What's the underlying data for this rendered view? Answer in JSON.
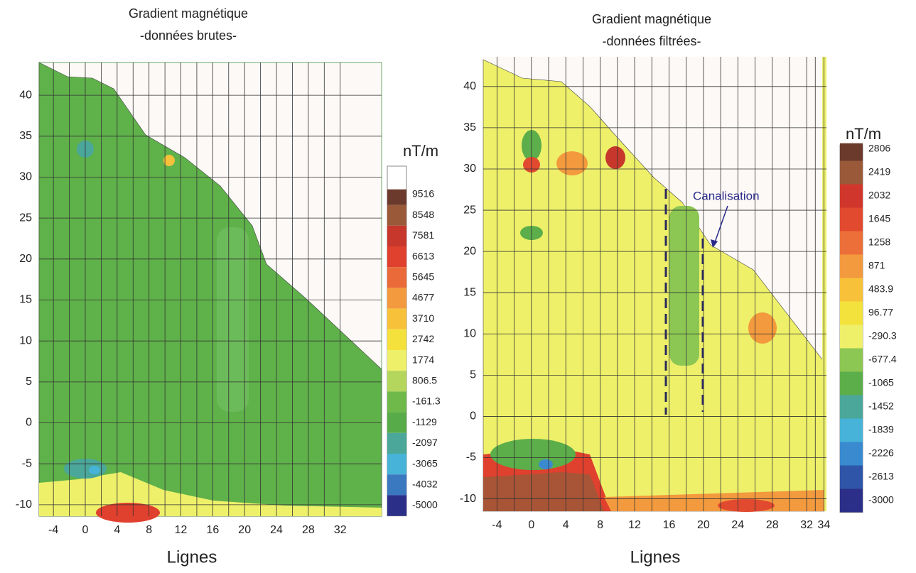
{
  "panels": [
    {
      "title": [
        "Gradient magnétique",
        "-données brutes-"
      ],
      "xlabel": "Lignes",
      "xlim": [
        -5.8,
        37.2
      ],
      "ylim": [
        -11.4,
        44
      ],
      "xticks": [
        -4,
        0,
        4,
        8,
        12,
        16,
        20,
        24,
        28,
        32
      ],
      "yticks": [
        -10,
        -5,
        0,
        5,
        10,
        15,
        20,
        25,
        30,
        35,
        40
      ],
      "colorbar": {
        "unit": "nT/m",
        "labels": [
          9516,
          8548,
          7581,
          6613,
          5645,
          4677,
          3710,
          2742,
          1774,
          806.5,
          -161.3,
          -1129,
          -2097,
          -3065,
          -4032,
          -5000
        ],
        "colors": [
          "#6b3a2c",
          "#9a5a3a",
          "#c7372c",
          "#e0402e",
          "#ea6a3a",
          "#f39a3e",
          "#f7c23a",
          "#f5e13c",
          "#eef06a",
          "#b4d65c",
          "#6eb94a",
          "#57ab48",
          "#4aa79a",
          "#47b3d8",
          "#3a78c0",
          "#2c2f88"
        ]
      }
    },
    {
      "title": [
        "Gradient magnétique",
        "-données filtrées-"
      ],
      "xlabel": "Lignes",
      "xlim": [
        -5.6,
        34.3
      ],
      "ylim": [
        -11.5,
        43.6
      ],
      "xticks": [
        -4,
        0,
        4,
        8,
        12,
        16,
        20,
        24,
        28,
        32,
        34
      ],
      "yticks": [
        -10,
        -5,
        0,
        5,
        10,
        15,
        20,
        25,
        30,
        35,
        40
      ],
      "annotation": "Canalisation",
      "colorbar": {
        "unit": "nT/m",
        "labels": [
          2806,
          2419,
          2032,
          1645,
          1258,
          871,
          483.9,
          96.77,
          -290.3,
          -677.4,
          -1065,
          -1452,
          -1839,
          -2226,
          -2613,
          -3000
        ],
        "colors": [
          "#6b3a2c",
          "#9a5a3a",
          "#d1362c",
          "#e24a30",
          "#ec6e38",
          "#f39a3e",
          "#f7c23a",
          "#f3e23c",
          "#eef06a",
          "#8cc653",
          "#5cae4a",
          "#4aa79a",
          "#47b3d8",
          "#3a8ad0",
          "#2e55a8",
          "#2c2f88"
        ]
      }
    }
  ]
}
